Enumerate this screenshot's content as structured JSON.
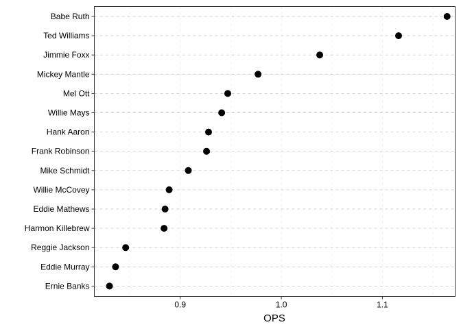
{
  "chart_data": {
    "type": "scatter",
    "title": "",
    "xlabel": "OPS",
    "ylabel": "",
    "xlim": [
      0.815,
      1.172
    ],
    "xticks": [
      {
        "value": 0.9,
        "label": "0.9"
      },
      {
        "value": 1.0,
        "label": "1.0"
      },
      {
        "value": 1.1,
        "label": "1.1"
      }
    ],
    "grid": true,
    "categories": [
      "Babe Ruth",
      "Ted Williams",
      "Jimmie Foxx",
      "Mickey Mantle",
      "Mel Ott",
      "Willie Mays",
      "Hank Aaron",
      "Frank Robinson",
      "Mike Schmidt",
      "Willie McCovey",
      "Eddie Mathews",
      "Harmon Killebrew",
      "Reggie Jackson",
      "Eddie Murray",
      "Ernie Banks"
    ],
    "values": [
      1.164,
      1.116,
      1.038,
      0.977,
      0.947,
      0.941,
      0.928,
      0.926,
      0.908,
      0.889,
      0.885,
      0.884,
      0.846,
      0.836,
      0.83
    ],
    "colors": {
      "point": "#000000",
      "panel_border": "#333333",
      "grid_major": "#cccccc",
      "grid_minor": "#ebebeb"
    }
  }
}
